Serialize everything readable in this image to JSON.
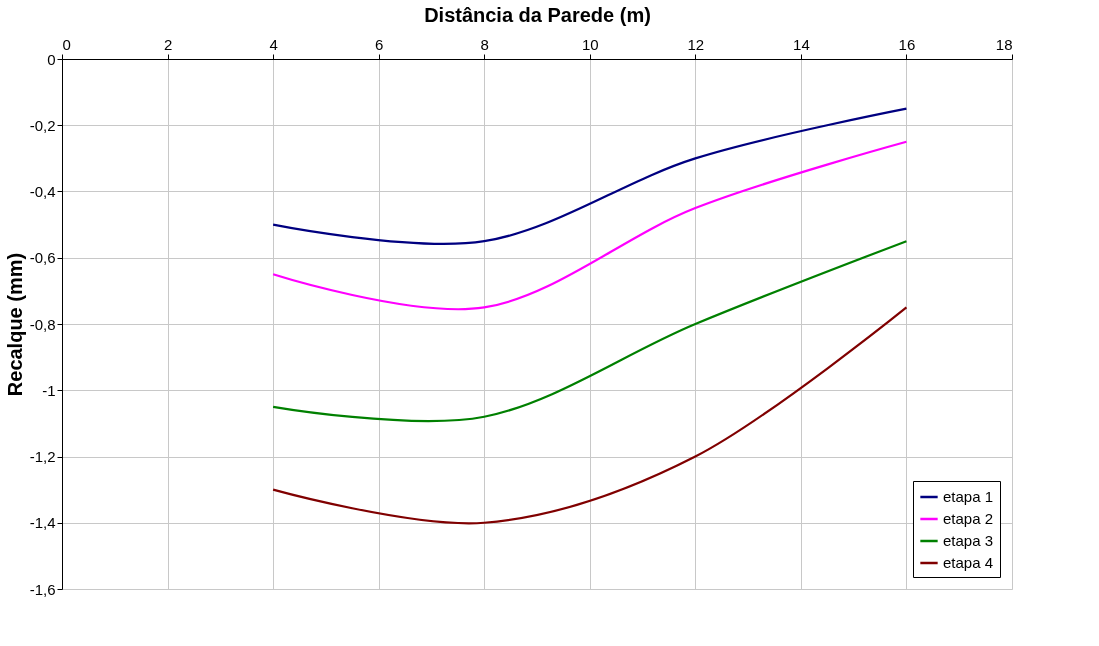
{
  "chart_data": {
    "type": "line",
    "xlabel": "Distância da Parede (m)",
    "ylabel": "Recalque (mm)",
    "x": [
      4,
      8,
      12,
      16
    ],
    "series": [
      {
        "name": "etapa 1",
        "color": "#000080",
        "values": [
          -0.5,
          -0.55,
          -0.3,
          -0.15
        ]
      },
      {
        "name": "etapa 2",
        "color": "#ff00ff",
        "values": [
          -0.65,
          -0.75,
          -0.45,
          -0.25
        ]
      },
      {
        "name": "etapa 3",
        "color": "#008000",
        "values": [
          -1.05,
          -1.08,
          -0.8,
          -0.55
        ]
      },
      {
        "name": "etapa 4",
        "color": "#800000",
        "values": [
          -1.3,
          -1.4,
          -1.2,
          -0.75
        ]
      }
    ],
    "xlim": [
      0,
      18
    ],
    "xticks": [
      0,
      2,
      4,
      6,
      8,
      10,
      12,
      14,
      16,
      18
    ],
    "ylim": [
      -1.6,
      0
    ],
    "yticks": [
      0,
      {
        "value": -0.2,
        "label": "-0,2"
      },
      {
        "value": -0.4,
        "label": "-0,4"
      },
      {
        "value": -0.6,
        "label": "-0,6"
      },
      {
        "value": -0.8,
        "label": "-0,8"
      },
      -1,
      {
        "value": -1.2,
        "label": "-1,2"
      },
      {
        "value": -1.4,
        "label": "-1,4"
      },
      {
        "value": -1.6,
        "label": "-1,6"
      }
    ],
    "grid": true,
    "legend": "bottom right",
    "marker": "none",
    "line_style": "solid"
  }
}
